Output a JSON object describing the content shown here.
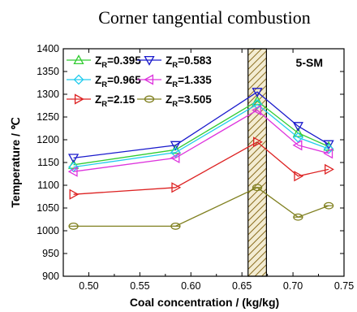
{
  "chart_data": {
    "type": "line",
    "title": "Corner tangential combustion",
    "xlabel": "Coal concentration / (kg/kg)",
    "ylabel": "Temperature / ℃",
    "xlim": [
      0.475,
      0.75
    ],
    "ylim": [
      900,
      1400
    ],
    "xticks": [
      "0.50",
      "0.55",
      "0.60",
      "0.65",
      "0.70",
      "0.75"
    ],
    "yticks": [
      "900",
      "950",
      "1000",
      "1050",
      "1100",
      "1150",
      "1200",
      "1250",
      "1300",
      "1350",
      "1400"
    ],
    "annotation": "5-SM",
    "shaded_band": {
      "x_from": 0.656,
      "x_to": 0.674,
      "pattern": "hatched"
    },
    "x": [
      0.485,
      0.585,
      0.665,
      0.705,
      0.735
    ],
    "series": [
      {
        "name": "Z",
        "sub": "R",
        "suffix": "=0.395",
        "color": "#33cc33",
        "marker": "triangle-up",
        "values": [
          1145,
          1178,
          1285,
          1215,
          1185
        ]
      },
      {
        "name": "Z",
        "sub": "R",
        "suffix": "=0.583",
        "color": "#1a1acc",
        "marker": "triangle-down",
        "values": [
          1160,
          1188,
          1305,
          1230,
          1190
        ]
      },
      {
        "name": "Z",
        "sub": "R",
        "suffix": "=0.965",
        "color": "#22ccee",
        "marker": "diamond",
        "values": [
          1140,
          1172,
          1278,
          1205,
          1180
        ]
      },
      {
        "name": "Z",
        "sub": "R",
        "suffix": "=1.335",
        "color": "#dd33dd",
        "marker": "triangle-left",
        "values": [
          1130,
          1160,
          1265,
          1188,
          1170
        ]
      },
      {
        "name": "Z",
        "sub": "R",
        "suffix": "=2.15",
        "color": "#dd2222",
        "marker": "triangle-right",
        "values": [
          1080,
          1095,
          1195,
          1120,
          1135
        ]
      },
      {
        "name": "Z",
        "sub": "R",
        "suffix": "=3.505",
        "color": "#808020",
        "marker": "hexagon",
        "values": [
          1010,
          1010,
          1095,
          1030,
          1055
        ]
      }
    ]
  }
}
